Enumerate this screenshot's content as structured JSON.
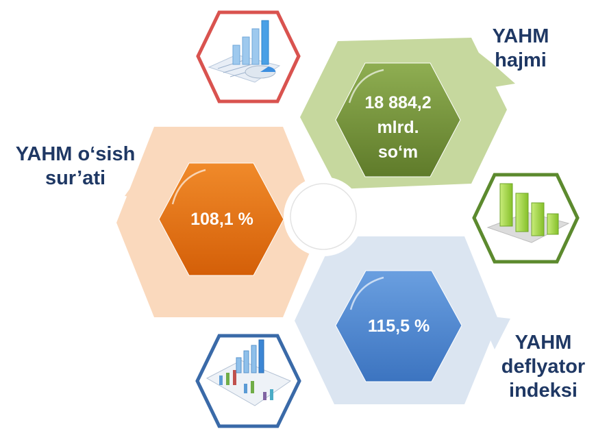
{
  "items": [
    {
      "value_lines": [
        "18 884,2",
        "mlrd.",
        "so‘m"
      ],
      "caption_lines": [
        "YAHM",
        "hajmi"
      ],
      "color": "#6e8b35",
      "bg_color": "#c6d89e"
    },
    {
      "value_lines": [
        "108,1 %"
      ],
      "caption_lines": [
        "YAHM o‘sish",
        "sur’ati"
      ],
      "color": "#e36c0a",
      "bg_color": "#fad9bd"
    },
    {
      "value_lines": [
        "115,5 %"
      ],
      "caption_lines": [
        "YAHM",
        "deflyator",
        "indeksi"
      ],
      "color": "#4a86d0",
      "bg_color": "#dbe5f1"
    }
  ],
  "icons": [
    {
      "name": "chart-report-icon",
      "frame_color": "#d9534f"
    },
    {
      "name": "bar-chart-3d-icon",
      "frame_color": "#5c8a2e"
    },
    {
      "name": "analytics-report-icon",
      "frame_color": "#3a6aa8"
    }
  ],
  "caption_color": "#1f3864"
}
